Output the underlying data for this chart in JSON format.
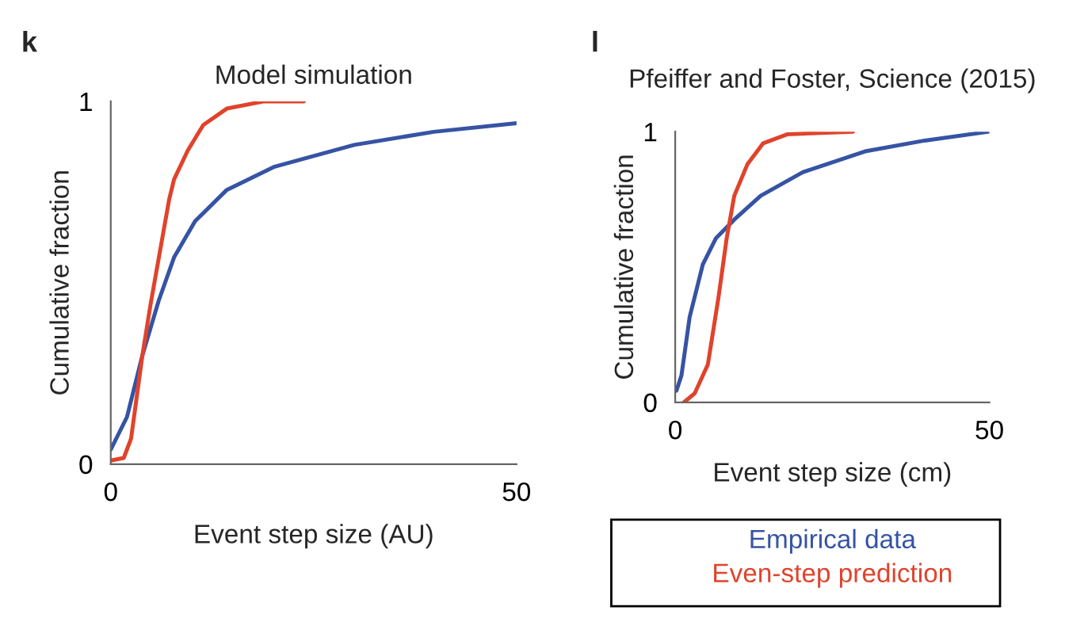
{
  "chart_data": [
    {
      "type": "line",
      "title": "Model simulation",
      "xlabel": "Event step size (AU)",
      "ylabel": "Cumulative fraction",
      "annotations": [
        "k"
      ],
      "xlim": [
        0,
        50
      ],
      "ylim": [
        0,
        1
      ],
      "xticks": [
        0,
        50
      ],
      "yticks": [
        0,
        1
      ],
      "grid": false,
      "series": [
        {
          "color": "#3653a4",
          "x": [
            0,
            2,
            3.9,
            5.9,
            7.8,
            10.4,
            14.3,
            20.2,
            30,
            39.8,
            50
          ],
          "values": [
            0.04,
            0.13,
            0.3,
            0.45,
            0.57,
            0.67,
            0.756,
            0.82,
            0.88,
            0.916,
            0.94
          ]
        },
        {
          "color": "#e0432b",
          "x": [
            0,
            1.6,
            2.5,
            3.9,
            4.9,
            7.2,
            7.8,
            9.5,
            11.4,
            14.3,
            18.9,
            23.8
          ],
          "values": [
            0.01,
            0.017,
            0.07,
            0.3,
            0.44,
            0.73,
            0.785,
            0.865,
            0.935,
            0.98,
            1.0,
            1.0
          ]
        }
      ]
    },
    {
      "type": "line",
      "title": "Pfeiffer and Foster, Science (2015)",
      "xlabel": "Event step size (cm)",
      "ylabel": "Cumulative fraction",
      "annotations": [
        "l"
      ],
      "xlim": [
        0,
        50
      ],
      "ylim": [
        0,
        1
      ],
      "xticks": [
        0,
        50
      ],
      "yticks": [
        0,
        1
      ],
      "grid": false,
      "series": [
        {
          "name": "Empirical data",
          "color": "#3653a4",
          "x": [
            0.2,
            1,
            2.3,
            4.4,
            6.5,
            9.4,
            13.6,
            20.3,
            30.4,
            39.7,
            50
          ],
          "values": [
            0.043,
            0.1,
            0.315,
            0.51,
            0.607,
            0.675,
            0.763,
            0.85,
            0.928,
            0.967,
            1.0
          ]
        },
        {
          "name": "Even-step prediction",
          "color": "#e0432b",
          "x": [
            1.4,
            3.1,
            5.2,
            6.9,
            8.2,
            9.4,
            11.5,
            14,
            17.8,
            28.3
          ],
          "values": [
            0,
            0.033,
            0.14,
            0.39,
            0.607,
            0.763,
            0.88,
            0.957,
            0.99,
            1.0
          ]
        }
      ]
    }
  ]
}
